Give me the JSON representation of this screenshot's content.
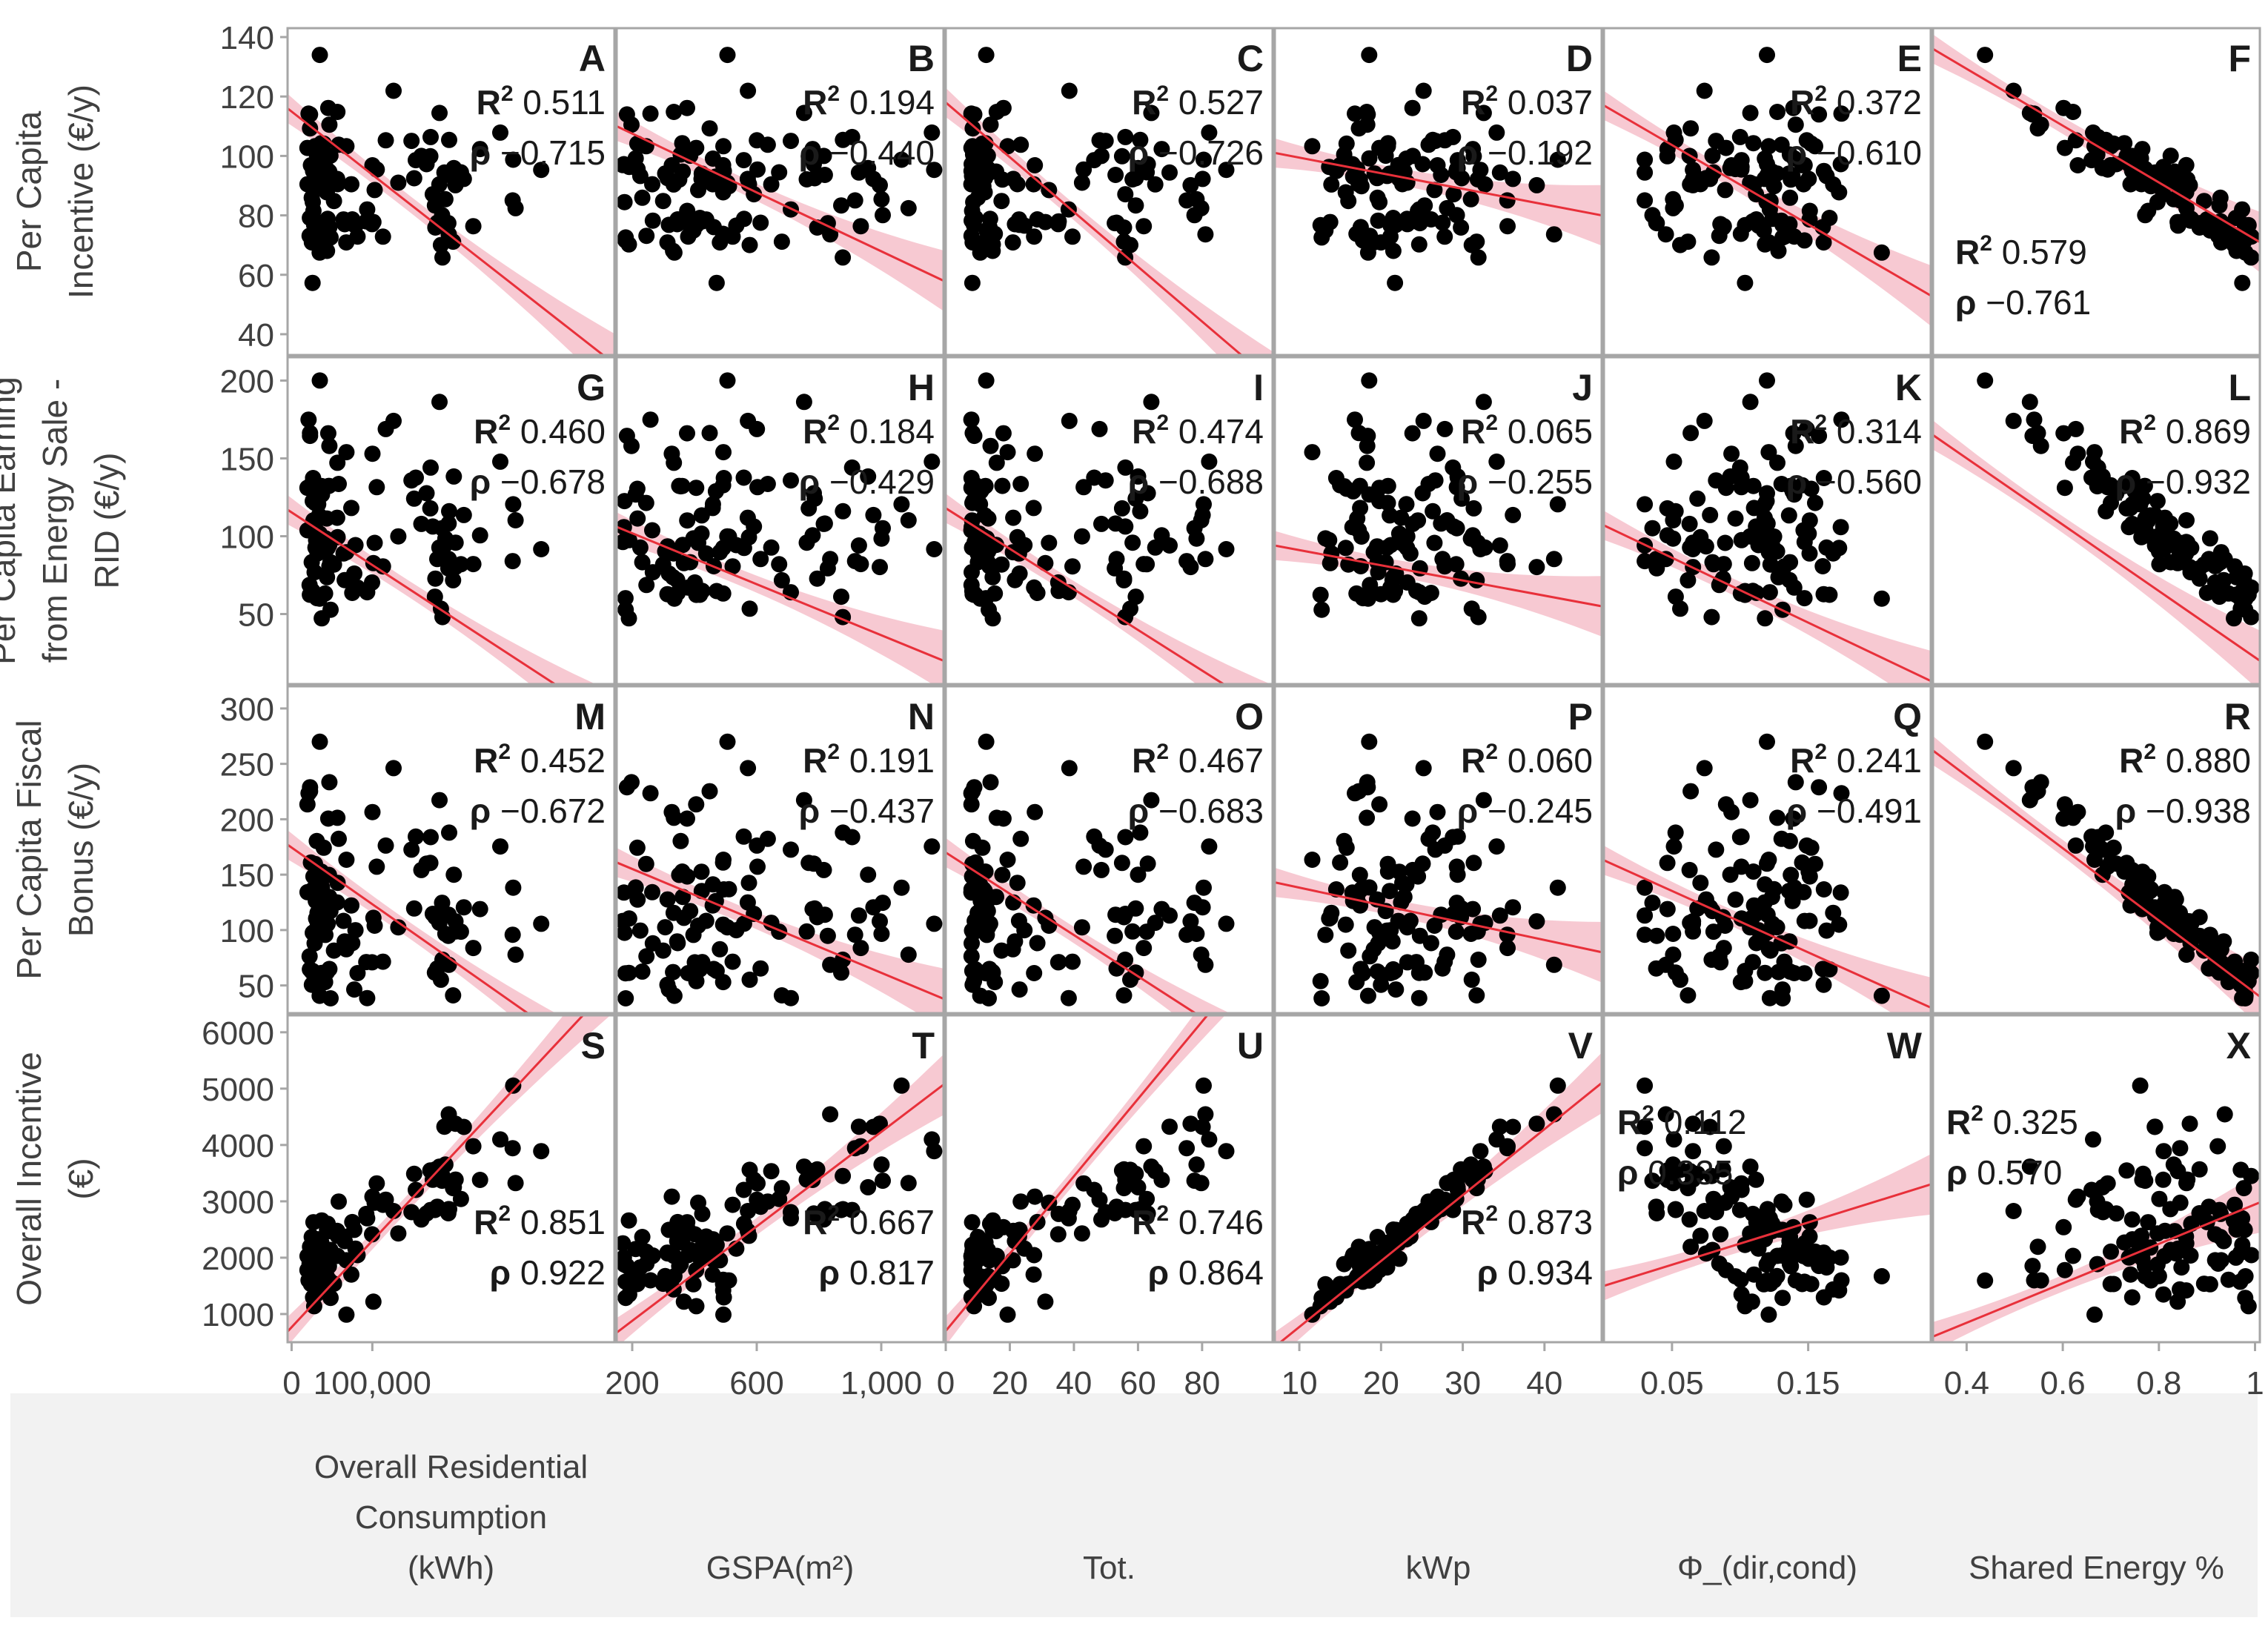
{
  "chart_data": {
    "type": "scatter",
    "title": "",
    "description_note": "6x4 scatter-plot matrix with linear fit and 95% confidence band",
    "colors": {
      "points": "#000000",
      "fit_line": "#e8303a",
      "confidence_band": "#f6bfca",
      "frame": "#a6a6a6",
      "text": "#404040"
    },
    "columns": [
      {
        "label": "Overall Residential Consumption (kWh)",
        "label_lines": [
          "Overall Residential",
          "Consumption",
          "(kWh)"
        ],
        "xlim": [
          -5000,
          400000
        ],
        "ticks": [
          {
            "v": 0,
            "t": "0"
          },
          {
            "v": 100000,
            "t": "100,000"
          }
        ]
      },
      {
        "label": "GSPA(m²)",
        "label_lines": [
          "GSPA(m²)"
        ],
        "xlim": [
          150,
          1200
        ],
        "ticks": [
          {
            "v": 200,
            "t": "200"
          },
          {
            "v": 600,
            "t": "600"
          },
          {
            "v": 1000,
            "t": "1,000"
          }
        ]
      },
      {
        "label": "Tot.",
        "label_lines": [
          "Tot."
        ],
        "xlim": [
          0,
          102
        ],
        "ticks": [
          {
            "v": 0,
            "t": "0"
          },
          {
            "v": 20,
            "t": "20"
          },
          {
            "v": 40,
            "t": "40"
          },
          {
            "v": 60,
            "t": "60"
          },
          {
            "v": 80,
            "t": "80"
          }
        ]
      },
      {
        "label": "kWp",
        "label_lines": [
          "kWp"
        ],
        "xlim": [
          7,
          47
        ],
        "ticks": [
          {
            "v": 10,
            "t": "10"
          },
          {
            "v": 20,
            "t": "20"
          },
          {
            "v": 30,
            "t": "30"
          },
          {
            "v": 40,
            "t": "40"
          }
        ]
      },
      {
        "label": "Φ_(dir,cond)",
        "label_lines": [
          "Φ_(dir,cond)"
        ],
        "xlim": [
          0.0,
          0.24
        ],
        "ticks": [
          {
            "v": 0.05,
            "t": "0.05"
          },
          {
            "v": 0.15,
            "t": "0.15"
          }
        ]
      },
      {
        "label": "Shared Energy %",
        "label_lines": [
          "Shared Energy %"
        ],
        "xlim": [
          0.33,
          1.01
        ],
        "ticks": [
          {
            "v": 0.4,
            "t": "0.4"
          },
          {
            "v": 0.6,
            "t": "0.6"
          },
          {
            "v": 0.8,
            "t": "0.8"
          },
          {
            "v": 1,
            "t": "1"
          }
        ]
      }
    ],
    "rows": [
      {
        "label": "Per Capita Incentive (€/y)",
        "label_lines": [
          "Per Capita",
          "Incentive (€/y)"
        ],
        "ylim": [
          33,
          143
        ],
        "ticks": [
          40,
          60,
          80,
          100,
          120,
          140
        ]
      },
      {
        "label": "Per Capita Earning from Energy Sale - RID (€/y)",
        "label_lines": [
          "Per Capita Earning",
          "from Energy Sale -",
          "RID (€/y)"
        ],
        "ylim": [
          5,
          215
        ],
        "ticks": [
          50,
          100,
          150,
          200
        ]
      },
      {
        "label": "Per Capita Fiscal Bonus (€/y)",
        "label_lines": [
          "Per Capita Fiscal",
          "Bonus (€/y)"
        ],
        "ylim": [
          25,
          320
        ],
        "ticks": [
          50,
          100,
          150,
          200,
          250,
          300
        ]
      },
      {
        "label": "Overall Incentive (€)",
        "label_lines": [
          "Overall Incentive",
          "(€)"
        ],
        "ylim": [
          500,
          6300
        ],
        "ticks": [
          1000,
          2000,
          3000,
          4000,
          5000,
          6000
        ]
      }
    ],
    "panels": [
      {
        "letter": "A",
        "r2": "0.511",
        "rho": "−0.715",
        "fit": [
          [
            -5000,
            116
          ],
          [
            400000,
            30
          ]
        ]
      },
      {
        "letter": "B",
        "r2": "0.194",
        "rho": "−0.440",
        "fit": [
          [
            150,
            110
          ],
          [
            1200,
            58
          ]
        ]
      },
      {
        "letter": "C",
        "r2": "0.527",
        "rho": "−0.726",
        "fit": [
          [
            0,
            118
          ],
          [
            102,
            24
          ]
        ]
      },
      {
        "letter": "D",
        "r2": "0.037",
        "rho": "−0.192",
        "fit": [
          [
            7,
            101
          ],
          [
            47,
            80
          ]
        ]
      },
      {
        "letter": "E",
        "r2": "0.372",
        "rho": "−0.610",
        "fit": [
          [
            0,
            117
          ],
          [
            0.24,
            53
          ]
        ]
      },
      {
        "letter": "F",
        "r2": "0.579",
        "rho": "−0.761",
        "fit": [
          [
            0.33,
            136
          ],
          [
            1.01,
            71
          ]
        ]
      },
      {
        "letter": "G",
        "r2": "0.460",
        "rho": "−0.678",
        "fit": [
          [
            -5000,
            117
          ],
          [
            400000,
            -20
          ]
        ]
      },
      {
        "letter": "H",
        "r2": "0.184",
        "rho": "−0.429",
        "fit": [
          [
            150,
            106
          ],
          [
            1200,
            20
          ]
        ]
      },
      {
        "letter": "I",
        "r2": "0.474",
        "rho": "−0.688",
        "fit": [
          [
            0,
            118
          ],
          [
            102,
            -15
          ]
        ]
      },
      {
        "letter": "J",
        "r2": "0.065",
        "rho": "−0.255",
        "fit": [
          [
            7,
            94
          ],
          [
            47,
            55
          ]
        ]
      },
      {
        "letter": "K",
        "r2": "0.314",
        "rho": "−0.560",
        "fit": [
          [
            0,
            107
          ],
          [
            0.24,
            7
          ]
        ]
      },
      {
        "letter": "L",
        "r2": "0.869",
        "rho": "−0.932",
        "fit": [
          [
            0.33,
            165
          ],
          [
            1.01,
            20
          ]
        ]
      },
      {
        "letter": "M",
        "r2": "0.452",
        "rho": "−0.672",
        "fit": [
          [
            -5000,
            177
          ],
          [
            400000,
            -30
          ]
        ]
      },
      {
        "letter": "N",
        "r2": "0.191",
        "rho": "−0.437",
        "fit": [
          [
            150,
            161
          ],
          [
            1200,
            38
          ]
        ]
      },
      {
        "letter": "O",
        "r2": "0.467",
        "rho": "−0.683",
        "fit": [
          [
            0,
            170
          ],
          [
            102,
            -20
          ]
        ]
      },
      {
        "letter": "P",
        "r2": "0.060",
        "rho": "−0.245",
        "fit": [
          [
            7,
            143
          ],
          [
            47,
            80
          ]
        ]
      },
      {
        "letter": "Q",
        "r2": "0.241",
        "rho": "−0.491",
        "fit": [
          [
            0,
            163
          ],
          [
            0.24,
            30
          ]
        ]
      },
      {
        "letter": "R",
        "r2": "0.880",
        "rho": "−0.938",
        "fit": [
          [
            0.33,
            262
          ],
          [
            1.01,
            40
          ]
        ]
      },
      {
        "letter": "S",
        "r2": "0.851",
        "rho": "0.922",
        "fit": [
          [
            -5000,
            690
          ],
          [
            400000,
            6900
          ]
        ]
      },
      {
        "letter": "T",
        "r2": "0.667",
        "rho": "0.817",
        "fit": [
          [
            150,
            670
          ],
          [
            1200,
            5070
          ]
        ]
      },
      {
        "letter": "U",
        "r2": "0.746",
        "rho": "0.864",
        "fit": [
          [
            0,
            700
          ],
          [
            102,
            7700
          ]
        ]
      },
      {
        "letter": "V",
        "r2": "0.873",
        "rho": "0.934",
        "fit": [
          [
            7,
            420
          ],
          [
            47,
            5100
          ]
        ]
      },
      {
        "letter": "W",
        "r2": "0.112",
        "rho": "0.335",
        "fit": [
          [
            0,
            1500
          ],
          [
            0.24,
            3300
          ]
        ]
      },
      {
        "letter": "X",
        "r2": "0.325",
        "rho": "0.570",
        "fit": [
          [
            0.33,
            600
          ],
          [
            1.01,
            2980
          ]
        ]
      }
    ],
    "n_points_per_panel": 110,
    "point_note": "Points approximate the scatter density and trend read from the figure (~110 condominiums per panel)"
  }
}
